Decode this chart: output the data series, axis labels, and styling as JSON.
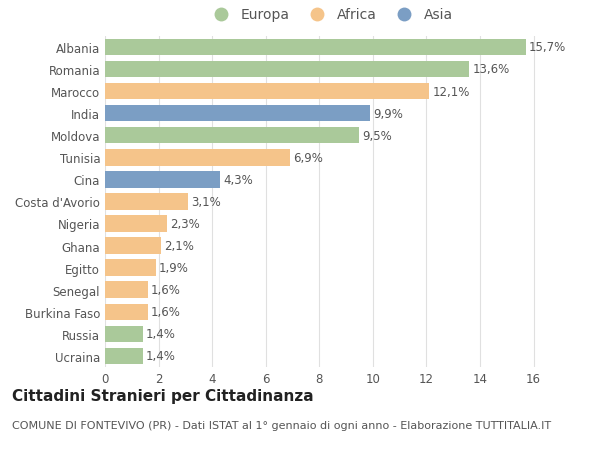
{
  "categories": [
    "Ucraina",
    "Russia",
    "Burkina Faso",
    "Senegal",
    "Egitto",
    "Ghana",
    "Nigeria",
    "Costa d'Avorio",
    "Cina",
    "Tunisia",
    "Moldova",
    "India",
    "Marocco",
    "Romania",
    "Albania"
  ],
  "values": [
    1.4,
    1.4,
    1.6,
    1.6,
    1.9,
    2.1,
    2.3,
    3.1,
    4.3,
    6.9,
    9.5,
    9.9,
    12.1,
    13.6,
    15.7
  ],
  "continents": [
    "Europa",
    "Europa",
    "Africa",
    "Africa",
    "Africa",
    "Africa",
    "Africa",
    "Africa",
    "Asia",
    "Africa",
    "Europa",
    "Asia",
    "Africa",
    "Europa",
    "Europa"
  ],
  "labels": [
    "1,4%",
    "1,4%",
    "1,6%",
    "1,6%",
    "1,9%",
    "2,1%",
    "2,3%",
    "3,1%",
    "4,3%",
    "6,9%",
    "9,5%",
    "9,9%",
    "12,1%",
    "13,6%",
    "15,7%"
  ],
  "colors": {
    "Europa": "#aac99a",
    "Africa": "#f5c48a",
    "Asia": "#7b9ec4"
  },
  "bg_color": "#ffffff",
  "plot_bg_color": "#ffffff",
  "grid_color": "#e0e0e0",
  "title": "Cittadini Stranieri per Cittadinanza",
  "subtitle": "COMUNE DI FONTEVIVO (PR) - Dati ISTAT al 1° gennaio di ogni anno - Elaborazione TUTTITALIA.IT",
  "xlim": [
    0,
    16.8
  ],
  "xticks": [
    0,
    2,
    4,
    6,
    8,
    10,
    12,
    14,
    16
  ],
  "bar_height": 0.75,
  "label_fontsize": 8.5,
  "tick_fontsize": 8.5,
  "title_fontsize": 11,
  "subtitle_fontsize": 8,
  "legend_fontsize": 10,
  "text_color": "#555555",
  "title_color": "#222222",
  "subtitle_color": "#555555"
}
